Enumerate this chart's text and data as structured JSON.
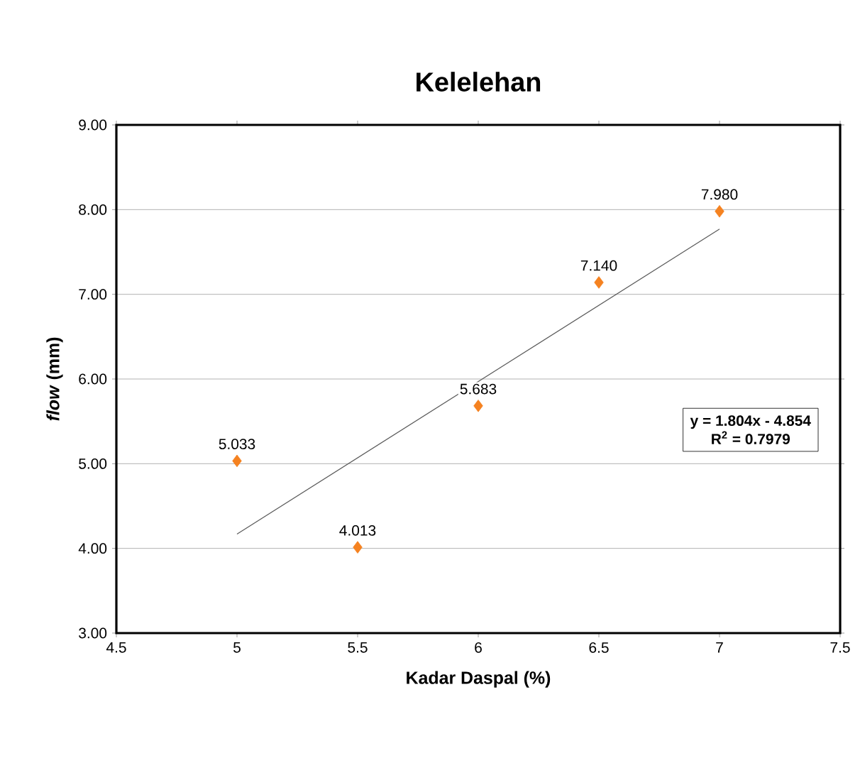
{
  "chart_data": {
    "type": "scatter",
    "title": "Kelelehan",
    "xlabel": "Kadar Daspal (%)",
    "ylabel": "*flow* (mm)",
    "series": [
      {
        "color": "#f58220",
        "marker": "diamond",
        "x": [
          5,
          5.5,
          6,
          6.5,
          7
        ],
        "values": [
          5.033,
          4.013,
          5.683,
          7.14,
          7.98
        ],
        "value_labels": [
          "5.033",
          "4.013",
          "5.683",
          "7.140",
          "7.980"
        ]
      },
      {
        "type": "line",
        "color": "#595959",
        "marker": "none",
        "x": [
          5,
          7
        ],
        "values": [
          4.17,
          7.77
        ]
      }
    ],
    "xlim": [
      4.5,
      7.5
    ],
    "xticks": [
      4.5,
      5,
      5.5,
      6,
      6.5,
      7,
      7.5
    ],
    "ylim": [
      3,
      9
    ],
    "yticks": [
      {
        "value": 3,
        "label": "3.00"
      },
      {
        "value": 4,
        "label": "4.00"
      },
      {
        "value": 5,
        "label": "5.00"
      },
      {
        "value": 6,
        "label": "6.00"
      },
      {
        "value": 7,
        "label": "7.00"
      },
      {
        "value": 8,
        "label": "8.00"
      },
      {
        "value": 9,
        "label": "9.00"
      }
    ],
    "grid": "y",
    "annotations": [
      "y = 1.804x - 4.854",
      "R$^{2}$ = 0.7979"
    ]
  }
}
